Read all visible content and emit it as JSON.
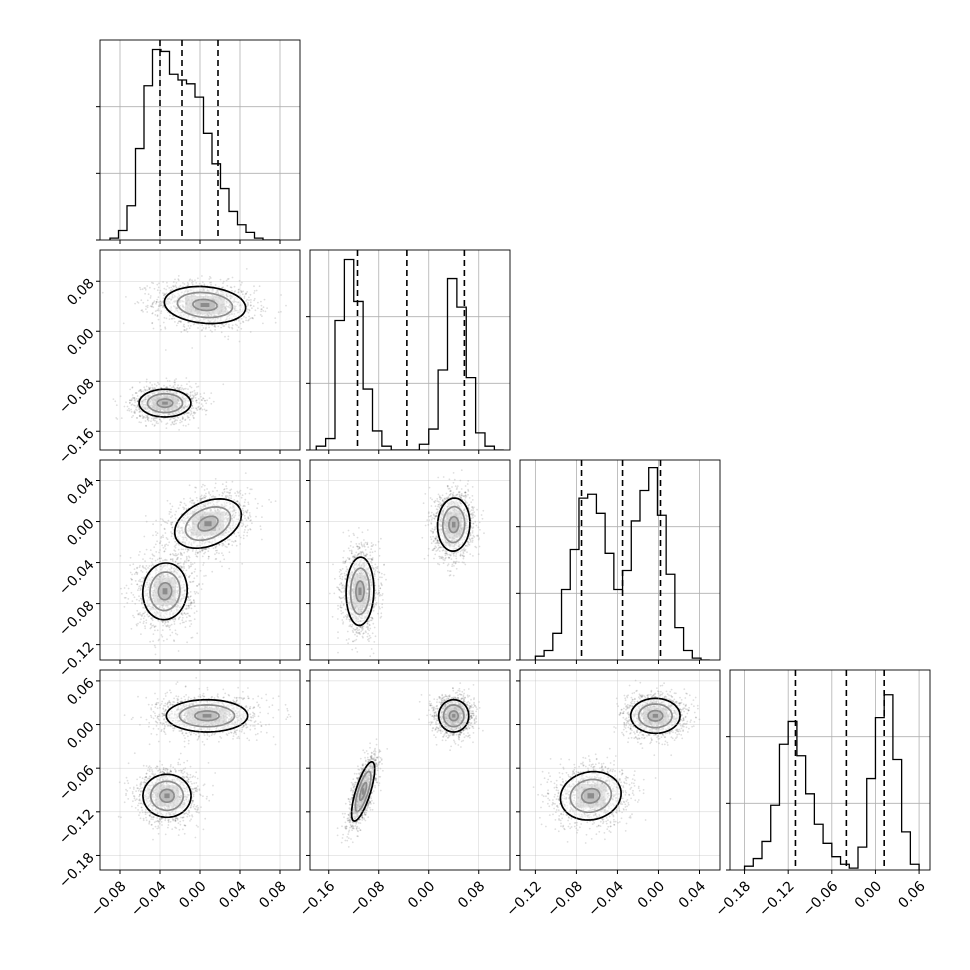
{
  "chart_data": {
    "type": "corner",
    "title": "",
    "grid": true,
    "n_params": 4,
    "params": [
      {
        "id": "p0",
        "label": "",
        "range": [
          -0.1,
          0.1
        ],
        "ticks": [
          -0.08,
          -0.04,
          0.0,
          0.04,
          0.08
        ],
        "tick_labels": [
          "−0.08",
          "−0.04",
          "0.00",
          "0.04",
          "0.08"
        ],
        "quantiles": [
          -0.04,
          -0.018,
          0.018
        ]
      },
      {
        "id": "p1",
        "label": "",
        "range": [
          -0.19,
          0.13
        ],
        "ticks": [
          -0.16,
          -0.08,
          0.0,
          0.08
        ],
        "tick_labels": [
          "−0.16",
          "−0.08",
          "0.00",
          "0.08"
        ],
        "quantiles": [
          -0.114,
          -0.035,
          0.057
        ]
      },
      {
        "id": "p2",
        "label": "",
        "range": [
          -0.135,
          0.06
        ],
        "ticks": [
          -0.12,
          -0.08,
          -0.04,
          0.0,
          0.04
        ],
        "tick_labels": [
          "−0.12",
          "−0.08",
          "−0.04",
          "0.00",
          "0.04"
        ],
        "quantiles": [
          -0.075,
          -0.035,
          0.002
        ]
      },
      {
        "id": "p3",
        "label": "",
        "range": [
          -0.2,
          0.075
        ],
        "ticks": [
          -0.18,
          -0.12,
          -0.06,
          0.0,
          0.06
        ],
        "tick_labels": [
          "−0.18",
          "−0.12",
          "−0.06",
          "0.00",
          "0.06"
        ],
        "quantiles": [
          -0.11,
          -0.04,
          0.012
        ]
      }
    ],
    "histograms": [
      {
        "param": "p0",
        "bins": 20,
        "range": [
          -0.09,
          0.08
        ],
        "ymax": 105,
        "counts": [
          1,
          5,
          18,
          48,
          81,
          100,
          99,
          87,
          84,
          82,
          75,
          56,
          40,
          27,
          15,
          8,
          4,
          1,
          0,
          0
        ]
      },
      {
        "param": "p1",
        "bins": 20,
        "range": [
          -0.18,
          0.12
        ],
        "ymax": 105,
        "counts": [
          2,
          6,
          68,
          100,
          78,
          32,
          10,
          2,
          0,
          0,
          0,
          3,
          11,
          42,
          90,
          75,
          38,
          9,
          2,
          0
        ]
      },
      {
        "param": "p2",
        "bins": 20,
        "range": [
          -0.12,
          0.05
        ],
        "ymax": 105,
        "counts": [
          2,
          5,
          14,
          37,
          58,
          85,
          87,
          77,
          56,
          37,
          47,
          73,
          89,
          101,
          76,
          45,
          17,
          5,
          1,
          0
        ]
      },
      {
        "param": "p3",
        "bins": 20,
        "range": [
          -0.18,
          0.06
        ],
        "ymax": 105,
        "counts": [
          2,
          6,
          15,
          34,
          66,
          78,
          60,
          40,
          24,
          14,
          7,
          3,
          1,
          12,
          48,
          80,
          92,
          58,
          20,
          3
        ]
      }
    ],
    "pairs": [
      {
        "x": "p0",
        "y": "p1",
        "modes": [
          {
            "cx": 0.005,
            "cy": 0.042,
            "sx": 0.022,
            "sy": 0.016,
            "rho": -0.15,
            "w": 0.5
          },
          {
            "cx": -0.035,
            "cy": -0.115,
            "sx": 0.014,
            "sy": 0.012,
            "rho": 0.0,
            "w": 0.5
          }
        ]
      },
      {
        "x": "p0",
        "y": "p2",
        "modes": [
          {
            "cx": 0.008,
            "cy": -0.002,
            "sx": 0.018,
            "sy": 0.013,
            "rho": 0.35,
            "w": 0.5
          },
          {
            "cx": -0.035,
            "cy": -0.068,
            "sx": 0.012,
            "sy": 0.015,
            "rho": 0.05,
            "w": 0.5
          }
        ]
      },
      {
        "x": "p0",
        "y": "p3",
        "modes": [
          {
            "cx": 0.007,
            "cy": 0.012,
            "sx": 0.022,
            "sy": 0.012,
            "rho": 0.0,
            "w": 0.5
          },
          {
            "cx": -0.033,
            "cy": -0.098,
            "sx": 0.013,
            "sy": 0.016,
            "rho": 0.0,
            "w": 0.5
          }
        ]
      },
      {
        "x": "p1",
        "y": "p2",
        "modes": [
          {
            "cx": 0.04,
            "cy": -0.003,
            "sx": 0.014,
            "sy": 0.014,
            "rho": 0.05,
            "w": 0.5
          },
          {
            "cx": -0.11,
            "cy": -0.068,
            "sx": 0.012,
            "sy": 0.018,
            "rho": 0.05,
            "w": 0.5
          }
        ]
      },
      {
        "x": "p1",
        "y": "p3",
        "modes": [
          {
            "cx": 0.04,
            "cy": 0.012,
            "sx": 0.013,
            "sy": 0.012,
            "rho": 0.0,
            "w": 0.5
          },
          {
            "cx": -0.105,
            "cy": -0.092,
            "sx": 0.01,
            "sy": 0.022,
            "rho": 0.75,
            "w": 0.5
          }
        ]
      },
      {
        "x": "p2",
        "y": "p3",
        "modes": [
          {
            "cx": -0.003,
            "cy": 0.012,
            "sx": 0.013,
            "sy": 0.013,
            "rho": 0.0,
            "w": 0.5
          },
          {
            "cx": -0.066,
            "cy": -0.098,
            "sx": 0.016,
            "sy": 0.018,
            "rho": 0.1,
            "w": 0.5
          }
        ]
      }
    ]
  }
}
